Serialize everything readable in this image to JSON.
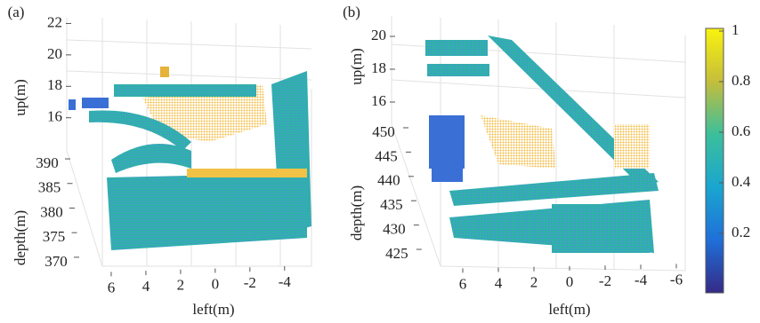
{
  "chart_data": [
    {
      "type": "scatter3d",
      "label": "(a)",
      "zlabel": "up(m)",
      "ylabel": "depth(m)",
      "xlabel": "left(m)",
      "zlim": [
        15,
        22.5
      ],
      "zticks": [
        16,
        18,
        20,
        22
      ],
      "ylim": [
        368,
        391
      ],
      "yticks": [
        370,
        375,
        380,
        385,
        390
      ],
      "xlim": [
        7,
        -5.5
      ],
      "xticks": [
        6,
        4,
        2,
        0,
        -2,
        -4
      ]
    },
    {
      "type": "scatter3d",
      "label": "(b)",
      "zlabel": "up(m)",
      "ylabel": "depth(m)",
      "xlabel": "left(m)",
      "zlim": [
        15,
        21
      ],
      "zticks": [
        16,
        18,
        20
      ],
      "ylim": [
        423,
        452
      ],
      "yticks": [
        425,
        430,
        435,
        440,
        445,
        450
      ],
      "xlim": [
        7.5,
        -7
      ],
      "xticks": [
        6,
        4,
        2,
        0,
        -2,
        -4,
        -6
      ]
    }
  ],
  "colorbar": {
    "clim": [
      0,
      1
    ],
    "ticks": [
      0.2,
      0.4,
      0.6,
      0.8,
      1
    ]
  }
}
